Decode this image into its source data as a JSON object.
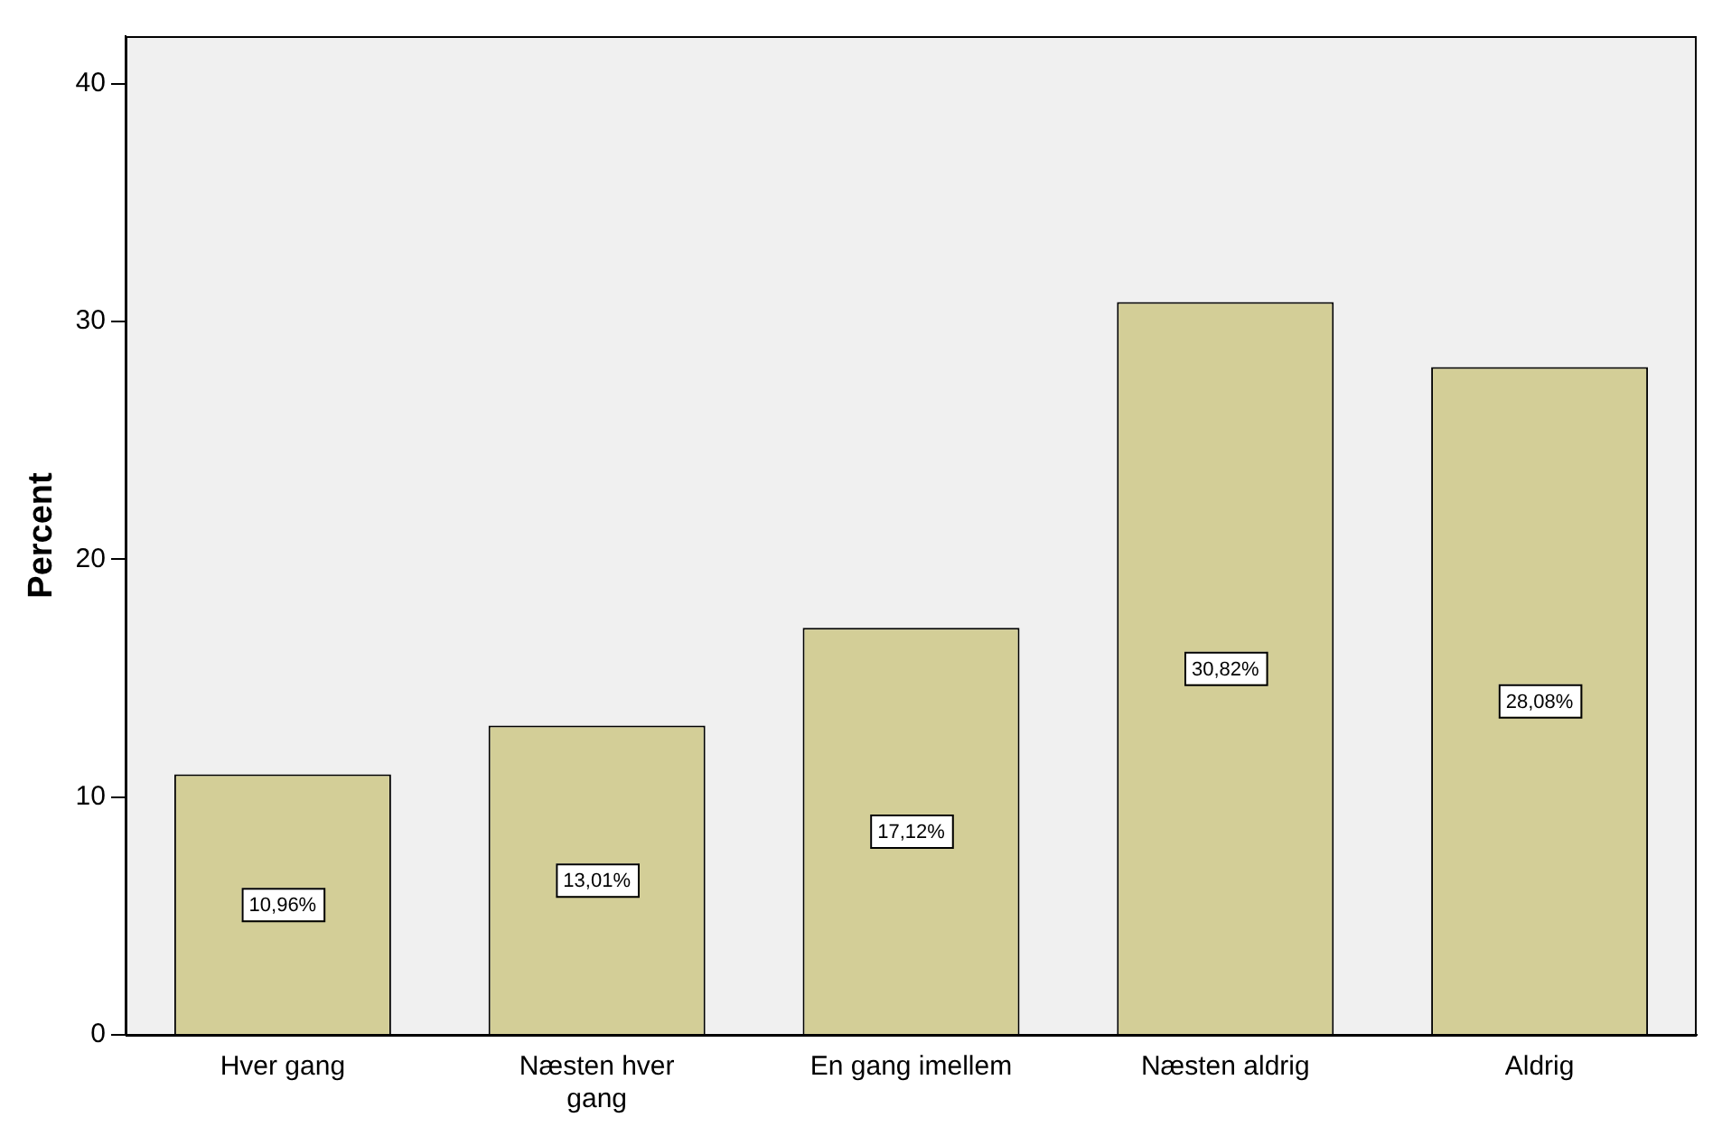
{
  "chart_data": {
    "type": "bar",
    "ylabel": "Percent",
    "categories": [
      "Hver gang",
      "Næsten hver gang",
      "En gang imellem",
      "Næsten aldrig",
      "Aldrig"
    ],
    "values": [
      10.96,
      13.01,
      17.12,
      30.82,
      28.08
    ],
    "value_labels": [
      "10,96%",
      "13,01%",
      "17,12%",
      "30,82%",
      "28,08%"
    ],
    "color": "#d3ce97",
    "ylim": [
      0,
      42
    ],
    "yticks": [
      0,
      10,
      20,
      30,
      40
    ],
    "grid": false,
    "legend": false
  }
}
